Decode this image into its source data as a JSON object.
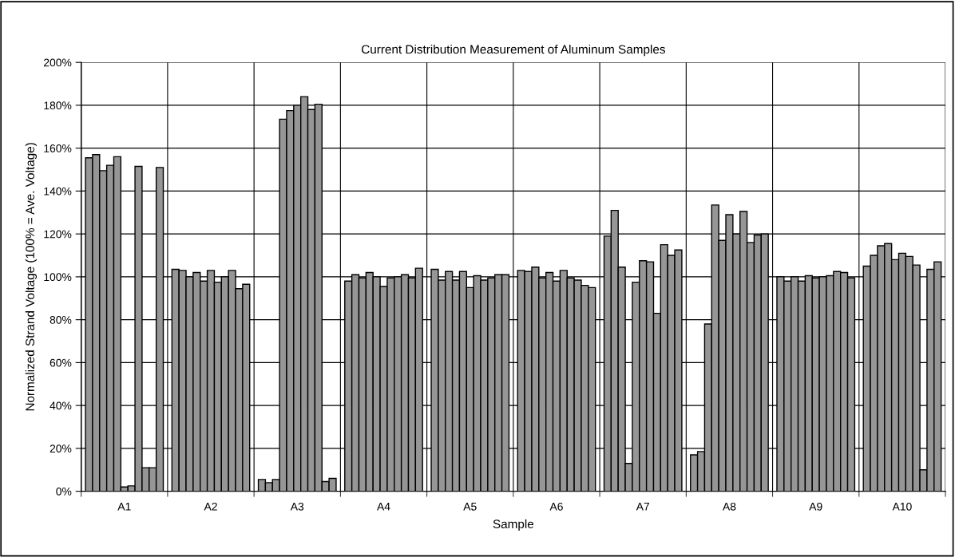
{
  "chart_data": {
    "type": "bar",
    "title": "Current Distribution Measurement of Aluminum Samples",
    "xlabel": "Sample",
    "ylabel": "Normalized Strand Voltage (100% = Ave. Voltage)",
    "categories": [
      "A1",
      "A2",
      "A3",
      "A4",
      "A5",
      "A6",
      "A7",
      "A8",
      "A9",
      "A10"
    ],
    "series": [
      {
        "color": "#969696",
        "values": [
          155.5,
          103.5,
          5.5,
          98,
          103.5,
          103,
          119,
          17,
          100,
          105
        ]
      },
      {
        "color": "#969696",
        "values": [
          157,
          103,
          4,
          101,
          98.5,
          102.5,
          131,
          18.5,
          98,
          110
        ]
      },
      {
        "color": "#969696",
        "values": [
          149.5,
          100,
          5.5,
          99.5,
          102.5,
          104.5,
          104.5,
          78,
          100,
          114.5
        ]
      },
      {
        "color": "#969696",
        "values": [
          152,
          102,
          173.5,
          102,
          98.5,
          99.5,
          13,
          133.5,
          98,
          115.5
        ]
      },
      {
        "color": "#969696",
        "values": [
          156,
          98,
          177.5,
          100,
          102.5,
          102,
          97.5,
          117,
          100.5,
          108
        ]
      },
      {
        "color": "#969696",
        "values": [
          2,
          103,
          180,
          95.5,
          95,
          98,
          107.5,
          129,
          99.5,
          111
        ]
      },
      {
        "color": "#969696",
        "values": [
          2.5,
          97.5,
          184,
          99.5,
          100.5,
          103,
          107,
          120,
          100,
          109.5
        ]
      },
      {
        "color": "#969696",
        "values": [
          151.5,
          100,
          178,
          100,
          98.5,
          99.5,
          83,
          130.5,
          100.5,
          105.5
        ]
      },
      {
        "color": "#969696",
        "values": [
          11,
          103,
          180.5,
          101,
          99.5,
          98.5,
          115,
          116,
          102.5,
          10
        ]
      },
      {
        "color": "#969696",
        "values": [
          11,
          94.5,
          4.5,
          99.5,
          101,
          96,
          110,
          119.5,
          102,
          103.5
        ]
      },
      {
        "color": "#969696",
        "values": [
          151,
          96.5,
          6,
          104,
          101,
          95,
          112.5,
          120,
          99.5,
          107
        ]
      }
    ],
    "ylim": [
      0,
      200
    ],
    "yticks": [
      {
        "value": 0,
        "label": "0%"
      },
      {
        "value": 20,
        "label": "20%"
      },
      {
        "value": 40,
        "label": "40%"
      },
      {
        "value": 60,
        "label": "60%"
      },
      {
        "value": 80,
        "label": "80%"
      },
      {
        "value": 100,
        "label": "100%"
      },
      {
        "value": 120,
        "label": "120%"
      },
      {
        "value": 140,
        "label": "140%"
      },
      {
        "value": 160,
        "label": "160%"
      },
      {
        "value": 180,
        "label": "180%"
      },
      {
        "value": 200,
        "label": "200%"
      }
    ],
    "grid": true
  }
}
